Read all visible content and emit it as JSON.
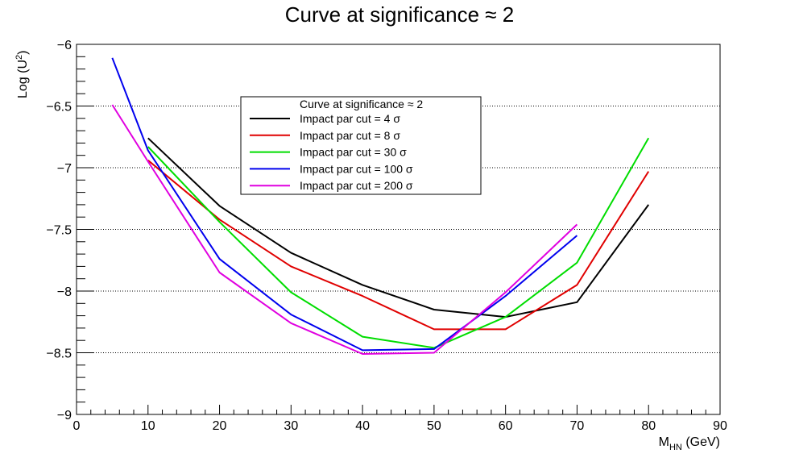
{
  "chart_data": {
    "type": "line",
    "title": "Curve at significance ≈ 2",
    "xlabel": "M",
    "xlabel_sub": "HN",
    "xlabel_unit": " (GeV)",
    "ylabel": "Log (U",
    "ylabel_sup": "2",
    "ylabel_end": ")",
    "xlim": [
      0,
      90
    ],
    "ylim": [
      -9,
      -6
    ],
    "x_ticks": [
      0,
      10,
      20,
      30,
      40,
      50,
      60,
      70,
      80,
      90
    ],
    "x_tick_labels": [
      "0",
      "10",
      "20",
      "30",
      "40",
      "50",
      "60",
      "70",
      "80",
      "90"
    ],
    "y_ticks": [
      -9,
      -8.5,
      -8,
      -7.5,
      -7,
      -6.5,
      -6
    ],
    "y_tick_labels": [
      "−9",
      "−8.5",
      "−8",
      "−7.5",
      "−7",
      "−6.5",
      "−6"
    ],
    "grid": "horizontal dotted",
    "legend": {
      "header": "Curve at significance ≈ 2",
      "placement": "upper-center"
    },
    "series": [
      {
        "name": "Impact par cut = 4 σ",
        "color": "#000000",
        "x": [
          10,
          20,
          30,
          40,
          50,
          60,
          70,
          80
        ],
        "y": [
          -6.76,
          -7.31,
          -7.69,
          -7.95,
          -8.15,
          -8.21,
          -8.09,
          -7.3
        ]
      },
      {
        "name": "Impact par cut = 8 σ",
        "color": "#e00000",
        "x": [
          10,
          20,
          30,
          40,
          50,
          60,
          70,
          80
        ],
        "y": [
          -6.94,
          -7.42,
          -7.8,
          -8.04,
          -8.31,
          -8.31,
          -7.95,
          -7.03
        ]
      },
      {
        "name": "Impact par cut = 30 σ",
        "color": "#00dd00",
        "x": [
          10,
          20,
          30,
          40,
          50,
          60,
          70,
          80
        ],
        "y": [
          -6.83,
          -7.44,
          -8.01,
          -8.37,
          -8.46,
          -8.21,
          -7.77,
          -6.76
        ]
      },
      {
        "name": "Impact par cut = 100 σ",
        "color": "#0000ee",
        "x": [
          5,
          10,
          20,
          30,
          40,
          50,
          60,
          70
        ],
        "y": [
          -6.11,
          -6.86,
          -7.74,
          -8.19,
          -8.48,
          -8.47,
          -8.04,
          -7.55
        ]
      },
      {
        "name": "Impact par cut = 200 σ",
        "color": "#e000e0",
        "x": [
          5,
          10,
          20,
          30,
          40,
          50,
          60,
          70
        ],
        "y": [
          -6.49,
          -6.95,
          -7.85,
          -8.26,
          -8.51,
          -8.5,
          -8.01,
          -7.46
        ]
      }
    ]
  }
}
